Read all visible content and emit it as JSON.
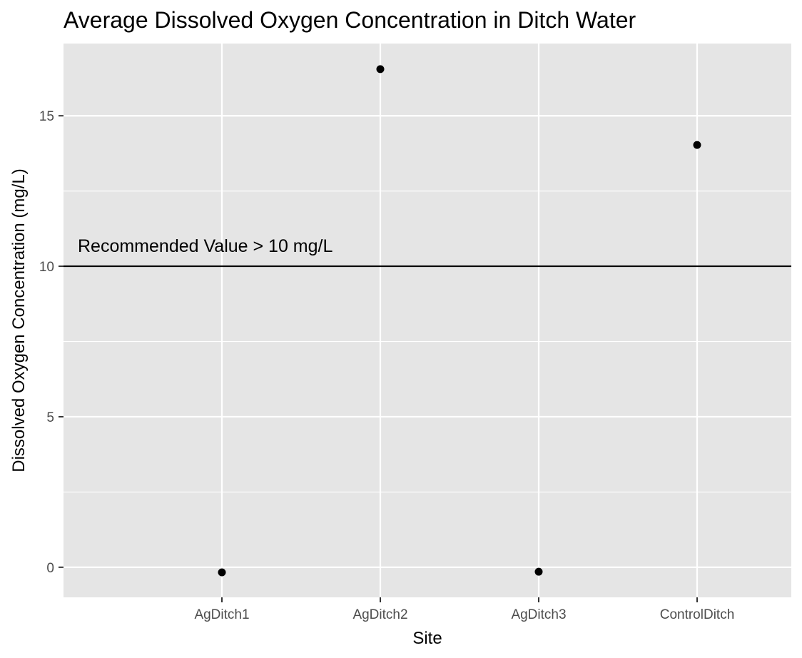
{
  "chart_data": {
    "type": "scatter",
    "title": "Average Dissolved Oxygen Concentration in Ditch Water",
    "xlabel": "Site",
    "ylabel": "Dissolved Oxygen Concentration (mg/L)",
    "categories": [
      "AgDitch1",
      "AgDitch2",
      "AgDitch3",
      "ControlDitch"
    ],
    "values": [
      -0.17,
      16.55,
      -0.15,
      14.03
    ],
    "ylim": [
      -1,
      17.4
    ],
    "yticks": [
      0,
      5,
      10,
      15
    ],
    "yticks_labels": [
      "0",
      "5",
      "10",
      "15"
    ],
    "reference_line": {
      "y": 10,
      "label": "Recommended Value > 10 mg/L",
      "color": "#000000"
    },
    "grid": true,
    "panel_background": "#e5e5e5",
    "grid_color": "#ffffff",
    "point_color": "#000000"
  }
}
